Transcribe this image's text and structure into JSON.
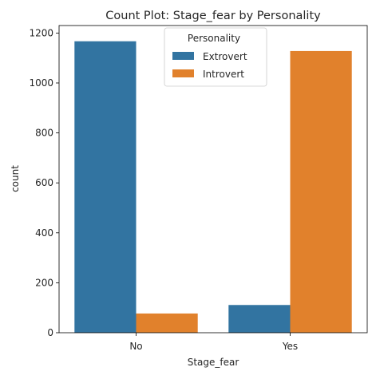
{
  "chart_data": {
    "type": "bar",
    "title": "Count Plot: Stage_fear by Personality",
    "xlabel": "Stage_fear",
    "ylabel": "count",
    "categories": [
      "No",
      "Yes"
    ],
    "series": [
      {
        "name": "Extrovert",
        "values": [
          1167,
          111
        ],
        "color": "#3274a1"
      },
      {
        "name": "Introvert",
        "values": [
          77,
          1128
        ],
        "color": "#e1812c"
      }
    ],
    "ylim": [
      0,
      1230
    ],
    "yticks": [
      0,
      200,
      400,
      600,
      800,
      1000,
      1200
    ],
    "grid": false,
    "legend": {
      "title": "Personality",
      "placement": "upper-center"
    }
  }
}
